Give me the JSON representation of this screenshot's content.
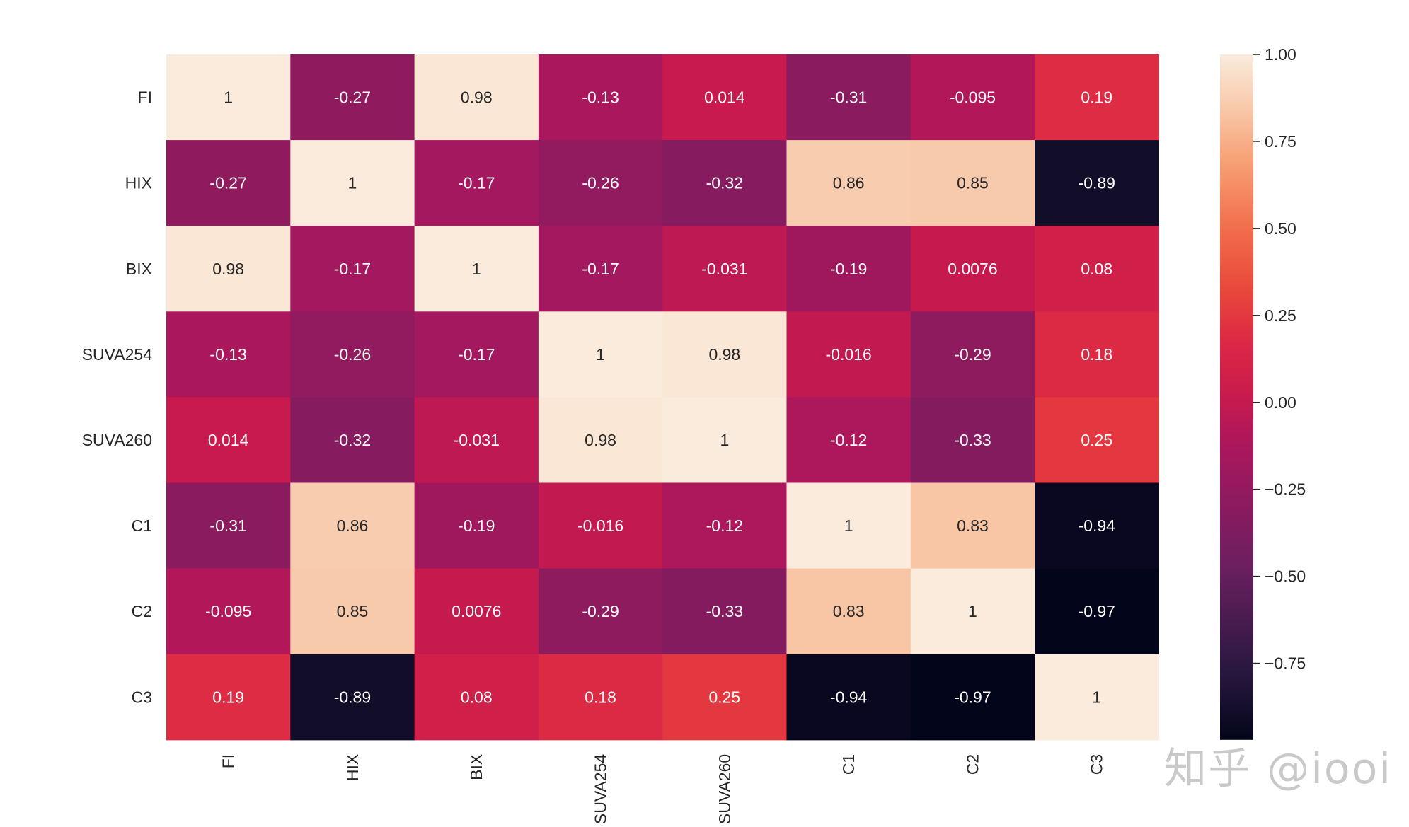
{
  "chart_data": {
    "type": "heatmap",
    "title": "",
    "xlabel": "",
    "ylabel": "",
    "row_labels": [
      "FI",
      "HIX",
      "BIX",
      "SUVA254",
      "SUVA260",
      "C1",
      "C2",
      "C3"
    ],
    "col_labels": [
      "FI",
      "HIX",
      "BIX",
      "SUVA254",
      "SUVA260",
      "C1",
      "C2",
      "C3"
    ],
    "values": [
      [
        1,
        -0.27,
        0.98,
        -0.13,
        0.014,
        -0.31,
        -0.095,
        0.19
      ],
      [
        -0.27,
        1,
        -0.17,
        -0.26,
        -0.32,
        0.86,
        0.85,
        -0.89
      ],
      [
        0.98,
        -0.17,
        1,
        -0.17,
        -0.031,
        -0.19,
        0.0076,
        0.08
      ],
      [
        -0.13,
        -0.26,
        -0.17,
        1,
        0.98,
        -0.016,
        -0.29,
        0.18
      ],
      [
        0.014,
        -0.32,
        -0.031,
        0.98,
        1,
        -0.12,
        -0.33,
        0.25
      ],
      [
        -0.31,
        0.86,
        -0.19,
        -0.016,
        -0.12,
        1,
        0.83,
        -0.94
      ],
      [
        -0.095,
        0.85,
        0.0076,
        -0.29,
        -0.33,
        0.83,
        1,
        -0.97
      ],
      [
        0.19,
        -0.89,
        0.08,
        0.18,
        0.25,
        -0.94,
        -0.97,
        1
      ]
    ],
    "annotations": [
      [
        "1",
        "-0.27",
        "0.98",
        "-0.13",
        "0.014",
        "-0.31",
        "-0.095",
        "0.19"
      ],
      [
        "-0.27",
        "1",
        "-0.17",
        "-0.26",
        "-0.32",
        "0.86",
        "0.85",
        "-0.89"
      ],
      [
        "0.98",
        "-0.17",
        "1",
        "-0.17",
        "-0.031",
        "-0.19",
        "0.0076",
        "0.08"
      ],
      [
        "-0.13",
        "-0.26",
        "-0.17",
        "1",
        "0.98",
        "-0.016",
        "-0.29",
        "0.18"
      ],
      [
        "0.014",
        "-0.32",
        "-0.031",
        "0.98",
        "1",
        "-0.12",
        "-0.33",
        "0.25"
      ],
      [
        "-0.31",
        "0.86",
        "-0.19",
        "-0.016",
        "-0.12",
        "1",
        "0.83",
        "-0.94"
      ],
      [
        "-0.095",
        "0.85",
        "0.0076",
        "-0.29",
        "-0.33",
        "0.83",
        "1",
        "-0.97"
      ],
      [
        "0.19",
        "-0.89",
        "0.08",
        "0.18",
        "0.25",
        "-0.94",
        "-0.97",
        "1"
      ]
    ],
    "colormap": "rocket",
    "vmin": -0.97,
    "vmax": 1.0,
    "colorbar": {
      "ticks": [
        1.0,
        0.75,
        0.5,
        0.25,
        0.0,
        -0.25,
        -0.5,
        -0.75
      ],
      "tick_labels": [
        "1.00",
        "0.75",
        "0.50",
        "0.25",
        "0.00",
        "−0.25",
        "−0.50",
        "−0.75"
      ]
    },
    "colormap_stops": [
      {
        "t": 0.0,
        "color": "#03051a"
      },
      {
        "t": 0.1,
        "color": "#28183f"
      },
      {
        "t": 0.25,
        "color": "#6a1f5f"
      },
      {
        "t": 0.42,
        "color": "#a8175e"
      },
      {
        "t": 0.5,
        "color": "#c81a4e"
      },
      {
        "t": 0.58,
        "color": "#dc2845"
      },
      {
        "t": 0.65,
        "color": "#e8453b"
      },
      {
        "t": 0.75,
        "color": "#f26f4c"
      },
      {
        "t": 0.85,
        "color": "#f7a378"
      },
      {
        "t": 0.92,
        "color": "#f8c8a9"
      },
      {
        "t": 1.0,
        "color": "#faebdd"
      }
    ]
  },
  "watermark": "知乎 @iooi"
}
